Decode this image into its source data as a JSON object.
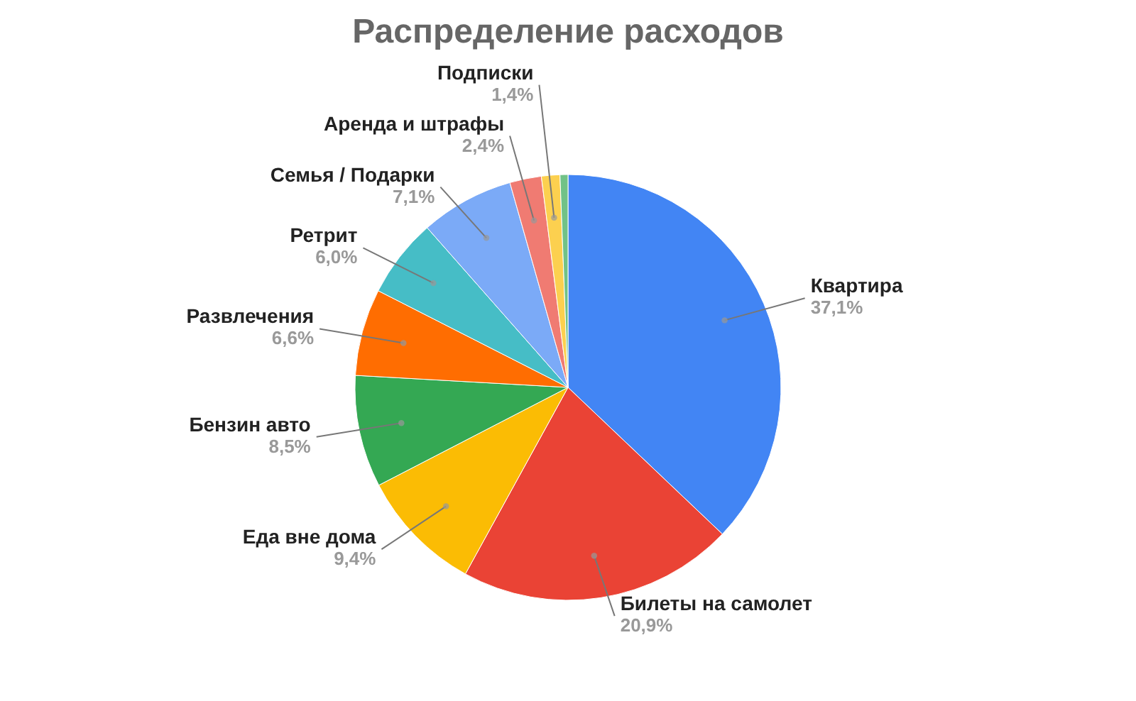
{
  "chart_data": {
    "type": "pie",
    "title": "Распределение расходов",
    "categories": [
      "Квартира",
      "Билеты на самолет",
      "Еда вне дома",
      "Бензин авто",
      "Развлечения",
      "Ретрит",
      "Семья / Подарки",
      "Аренда и штрафы",
      "Подписки",
      null
    ],
    "values": [
      37.1,
      20.9,
      9.4,
      8.5,
      6.6,
      6.0,
      7.1,
      2.4,
      1.4,
      0.6
    ],
    "value_labels": [
      "37,1%",
      "20,9%",
      "9,4%",
      "8,5%",
      "6,6%",
      "6,0%",
      "7,1%",
      "2,4%",
      "1,4%",
      null
    ],
    "colors": [
      "#4285f4",
      "#ea4335",
      "#fbbc04",
      "#34a853",
      "#ff6d01",
      "#46bdc6",
      "#7baaf7",
      "#f07b72",
      "#fcd04f",
      "#71c287"
    ]
  }
}
